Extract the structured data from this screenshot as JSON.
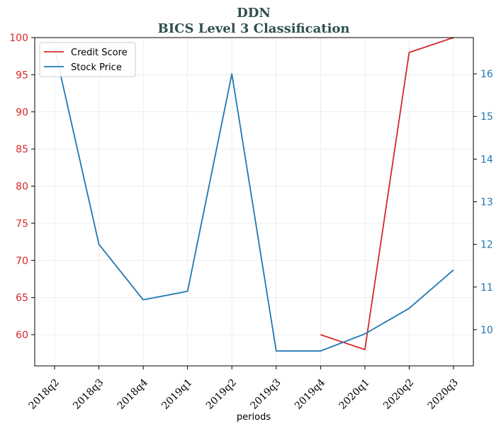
{
  "chart_data": {
    "type": "line",
    "title": "DDN",
    "subtitle": "BICS Level 3 Classification",
    "xlabel": "periods",
    "categories": [
      "2018q2",
      "2018q3",
      "2018q4",
      "2019q1",
      "2019q2",
      "2019q3",
      "2019q4",
      "2020q1",
      "2020q2",
      "2020q3"
    ],
    "left_axis": {
      "ylim": [
        55.8,
        100
      ],
      "ticks": [
        60,
        65,
        70,
        75,
        80,
        85,
        90,
        95,
        100
      ],
      "color": "#d62728"
    },
    "right_axis": {
      "ylim": [
        9.15,
        16.85
      ],
      "ticks": [
        10,
        11,
        12,
        13,
        14,
        15,
        16
      ],
      "color": "#1f77b4"
    },
    "grid": true,
    "legend_position": "top-left",
    "series": [
      {
        "name": "Credit Score",
        "axis": "left",
        "color": "#d62728",
        "values": [
          null,
          null,
          null,
          null,
          null,
          null,
          60,
          58,
          98,
          100
        ]
      },
      {
        "name": "Stock Price",
        "axis": "right",
        "color": "#1f77b4",
        "values": [
          16.6,
          12.0,
          10.7,
          10.9,
          16.0,
          9.5,
          9.5,
          9.9,
          10.5,
          11.4
        ]
      }
    ]
  }
}
